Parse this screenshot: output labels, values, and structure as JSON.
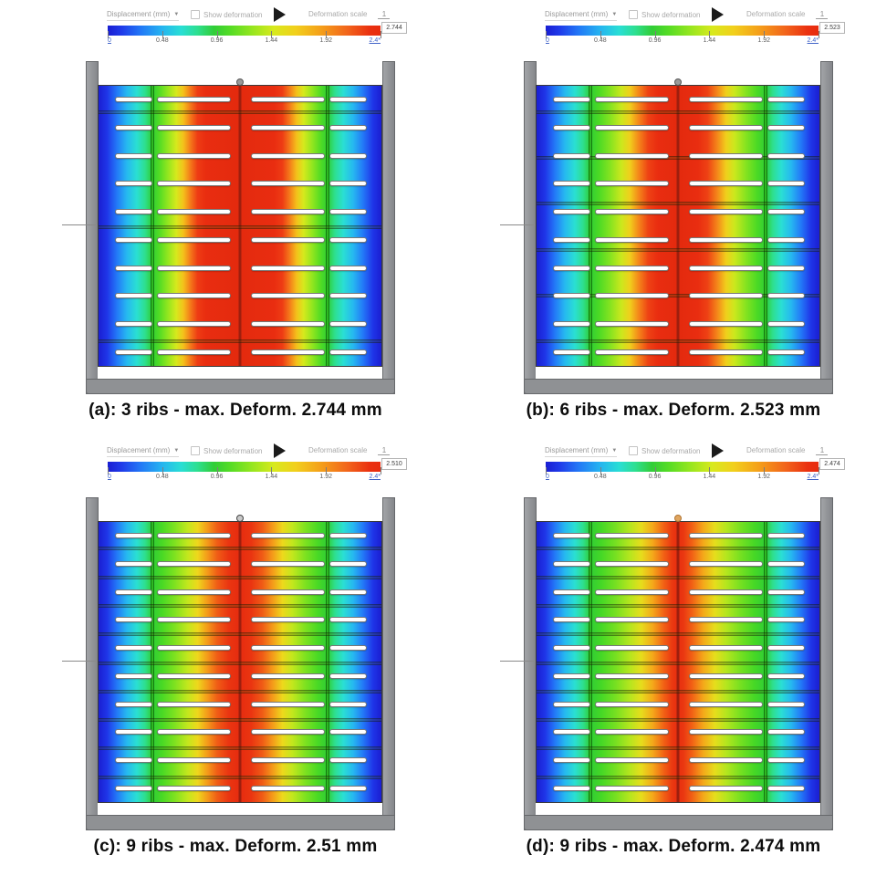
{
  "toolbar": {
    "field_label": "Displacement (mm)",
    "show_deformation_label": "Show deformation",
    "deformation_scale_label": "Deformation scale",
    "deformation_scale_value": "1"
  },
  "colorbar": {
    "ticks": [
      {
        "label": "0",
        "link": true
      },
      {
        "label": "0.48",
        "link": false
      },
      {
        "label": "0.96",
        "link": false
      },
      {
        "label": "1.44",
        "link": false
      },
      {
        "label": "1.92",
        "link": false
      },
      {
        "label": "2.4*",
        "link": true
      }
    ],
    "gradient": [
      "#1a1ed2 0%",
      "#1f3ae9 5%",
      "#2277f6 12%",
      "#25b4f0 20%",
      "#29ded4 27%",
      "#2ddf8f 33%",
      "#31cd37 39%",
      "#55dc25 45%",
      "#96e61f 53%",
      "#d8e91d 61%",
      "#f2cf1c 69%",
      "#f4a01a 78%",
      "#f2641b 88%",
      "#ea3110 96%",
      "#e82c0f 100%"
    ],
    "link_color": "#3f62c8"
  },
  "panels": [
    {
      "label": "(a)",
      "caption": "(a): 3 ribs - max. Deform. 2.744 mm",
      "max_value": "2.744",
      "ribs": 3,
      "knob_color": "#9a9a9a",
      "knob_border": "#555555",
      "contour_stops": [
        [
          0,
          "#1a1ed2"
        ],
        [
          3,
          "#1f35e8"
        ],
        [
          6.5,
          "#2379f7"
        ],
        [
          10,
          "#26b8f0"
        ],
        [
          13.5,
          "#2adfd3"
        ],
        [
          16.5,
          "#2edf8d"
        ],
        [
          19,
          "#2fcd35"
        ],
        [
          21.5,
          "#52dc24"
        ],
        [
          24.5,
          "#93e61f"
        ],
        [
          27.5,
          "#d6e91d"
        ],
        [
          30,
          "#f4c01b"
        ],
        [
          32.5,
          "#f4791a"
        ],
        [
          35,
          "#ee3c14"
        ],
        [
          38,
          "#e92d10"
        ],
        [
          50,
          "#e32a0e"
        ]
      ]
    },
    {
      "label": "(b)",
      "caption": "(b): 6 ribs - max. Deform. 2.523 mm",
      "max_value": "2.523",
      "ribs": 6,
      "knob_color": "#9a9a9a",
      "knob_border": "#555555",
      "contour_stops": [
        [
          0,
          "#1a1ed2"
        ],
        [
          3,
          "#1f35e8"
        ],
        [
          6.5,
          "#2379f7"
        ],
        [
          10,
          "#26b8f0"
        ],
        [
          13.5,
          "#2adfd3"
        ],
        [
          16.5,
          "#2edf8d"
        ],
        [
          19,
          "#2fcd35"
        ],
        [
          22,
          "#4bda25"
        ],
        [
          26,
          "#85e320"
        ],
        [
          30,
          "#cbe81d"
        ],
        [
          33,
          "#f0cf1c"
        ],
        [
          36,
          "#f4891a"
        ],
        [
          39.5,
          "#ee4214"
        ],
        [
          43,
          "#e92d10"
        ],
        [
          50,
          "#e32a0e"
        ]
      ]
    },
    {
      "label": "(c)",
      "caption": "(c): 9 ribs - max. Deform. 2.51 mm",
      "max_value": "2.510",
      "ribs": 9,
      "knob_color": "#c9c9c9",
      "knob_border": "#444444",
      "contour_stops": [
        [
          0,
          "#1a1ed2"
        ],
        [
          3,
          "#1f35e8"
        ],
        [
          6.5,
          "#2379f7"
        ],
        [
          10,
          "#26b8f0"
        ],
        [
          13.5,
          "#2adfd3"
        ],
        [
          16.5,
          "#2edf8d"
        ],
        [
          19,
          "#2fcd35"
        ],
        [
          22.5,
          "#49d925"
        ],
        [
          27,
          "#7fe220"
        ],
        [
          31.5,
          "#c3e71d"
        ],
        [
          35,
          "#eed81c"
        ],
        [
          38.5,
          "#f49a1a"
        ],
        [
          42,
          "#f05c16"
        ],
        [
          46,
          "#ea3511"
        ],
        [
          50,
          "#e62c0f"
        ]
      ]
    },
    {
      "label": "(d)",
      "caption": "(d): 9 ribs - max. Deform. 2.474 mm",
      "max_value": "2.474",
      "ribs": 9,
      "knob_color": "#e0a55f",
      "knob_border": "#b07330",
      "contour_stops": [
        [
          0,
          "#1a1ed2"
        ],
        [
          3,
          "#1f35e8"
        ],
        [
          6.5,
          "#2379f7"
        ],
        [
          10,
          "#26b8f0"
        ],
        [
          13.5,
          "#2adfd3"
        ],
        [
          16.5,
          "#2edf8d"
        ],
        [
          19,
          "#2fcd35"
        ],
        [
          23,
          "#46d826"
        ],
        [
          28,
          "#77e021"
        ],
        [
          33,
          "#b5e61e"
        ],
        [
          37,
          "#e6dd1c"
        ],
        [
          41,
          "#f4a91a"
        ],
        [
          45,
          "#f26115"
        ],
        [
          48,
          "#ea3811"
        ],
        [
          50,
          "#e82e0f"
        ]
      ]
    }
  ]
}
